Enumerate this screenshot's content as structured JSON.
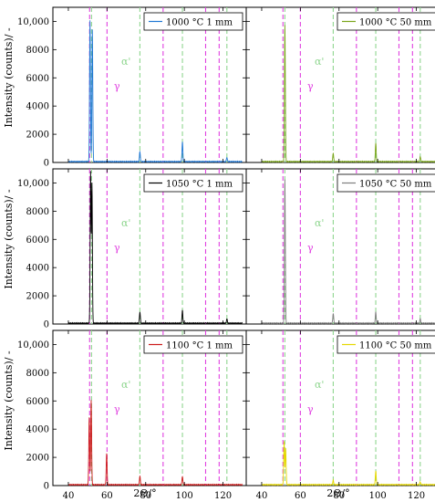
{
  "chart_data": {
    "type": "line",
    "ylabel": "Intensity (counts)/ -",
    "xlabel": "2Θ/°",
    "xlim": [
      32,
      132
    ],
    "ylim": [
      0,
      11000
    ],
    "xticks": [
      40,
      60,
      80,
      100,
      120
    ],
    "xtick_labels": [
      "40",
      "60",
      "80",
      "100",
      "120"
    ],
    "yticks": [
      0,
      2000,
      4000,
      6000,
      8000,
      10000
    ],
    "ytick_labels": [
      "0",
      "2000",
      "4000",
      "6000",
      "8000",
      "10,000"
    ],
    "alpha_label": "α'",
    "gamma_label": "γ",
    "alpha_lines": [
      52,
      77,
      99,
      122
    ],
    "gamma_lines": [
      51,
      60,
      89,
      111,
      118
    ],
    "colors": {
      "alpha": "#8fd68f",
      "gamma": "#e040e0"
    },
    "panels": [
      {
        "legend": "1000 °C 1 mm",
        "color": "#1f77d4",
        "row": 0,
        "col": 0,
        "peaks": [
          [
            51.2,
            10000
          ],
          [
            52.4,
            9400
          ],
          [
            77,
            700
          ],
          [
            99,
            1400
          ],
          [
            122,
            300
          ]
        ]
      },
      {
        "legend": "1000 °C 50 mm",
        "color": "#7aa51a",
        "row": 0,
        "col": 1,
        "peaks": [
          [
            52,
            9700
          ],
          [
            77,
            600
          ],
          [
            99,
            1300
          ],
          [
            122,
            350
          ]
        ]
      },
      {
        "legend": "1050 °C 1 mm",
        "color": "#000000",
        "row": 1,
        "col": 0,
        "peaks": [
          [
            51.5,
            10700
          ],
          [
            52.2,
            9900
          ],
          [
            77,
            800
          ],
          [
            99,
            900
          ],
          [
            122,
            300
          ]
        ]
      },
      {
        "legend": "1050 °C 50 mm",
        "color": "#7f7f7f",
        "row": 1,
        "col": 1,
        "peaks": [
          [
            52,
            10200
          ],
          [
            77,
            700
          ],
          [
            99,
            800
          ],
          [
            122,
            300
          ]
        ]
      },
      {
        "legend": "1100 °C 1 mm",
        "color": "#cc1a1a",
        "row": 2,
        "col": 0,
        "peaks": [
          [
            50.8,
            4800
          ],
          [
            51.8,
            6000
          ],
          [
            59.8,
            2200
          ],
          [
            77,
            600
          ],
          [
            99,
            600
          ]
        ]
      },
      {
        "legend": "1100 °C 50 mm",
        "color": "#e5d800",
        "row": 2,
        "col": 1,
        "peaks": [
          [
            51.6,
            3100
          ],
          [
            52.4,
            2600
          ],
          [
            77,
            300
          ],
          [
            99,
            1000
          ],
          [
            122,
            200
          ]
        ]
      }
    ]
  }
}
